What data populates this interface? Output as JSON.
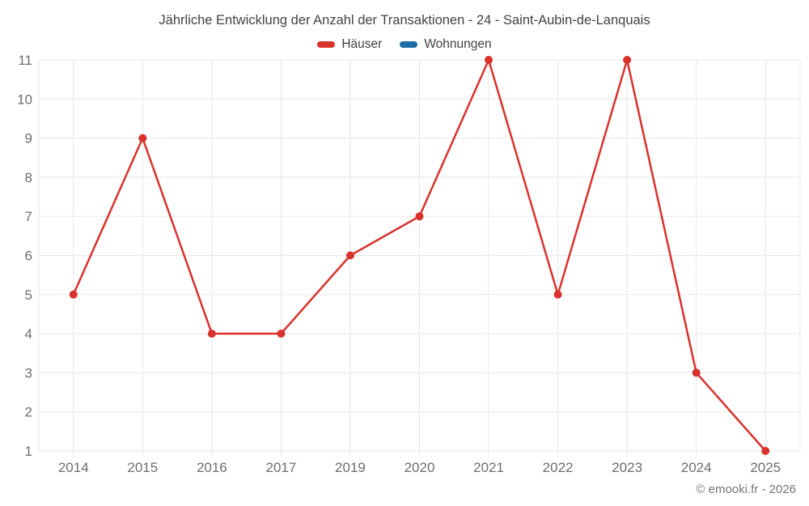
{
  "chart_data": {
    "type": "line",
    "title": "Jährliche Entwicklung der Anzahl der Transaktionen - 24 - Saint-Aubin-de-Lanquais",
    "categories": [
      "2014",
      "2015",
      "2016",
      "2017",
      "2019",
      "2020",
      "2021",
      "2022",
      "2023",
      "2024",
      "2025"
    ],
    "series": [
      {
        "name": "Häuser",
        "color": "#d9322d",
        "values": [
          5,
          9,
          4,
          4,
          6,
          7,
          11,
          5,
          11,
          3,
          1
        ]
      },
      {
        "name": "Wohnungen",
        "color": "#1d6fa5",
        "values": []
      }
    ],
    "xlabel": "",
    "ylabel": "",
    "ylim": [
      1,
      11
    ],
    "yticks": [
      1,
      2,
      3,
      4,
      5,
      6,
      7,
      8,
      9,
      10,
      11
    ],
    "grid": true,
    "legend_position": "top",
    "marker": "circle",
    "grid_color": "#e7e7e7",
    "axis_label_color": "#6d6d6d"
  },
  "footer": {
    "copyright": "© emooki.fr - 2026"
  }
}
